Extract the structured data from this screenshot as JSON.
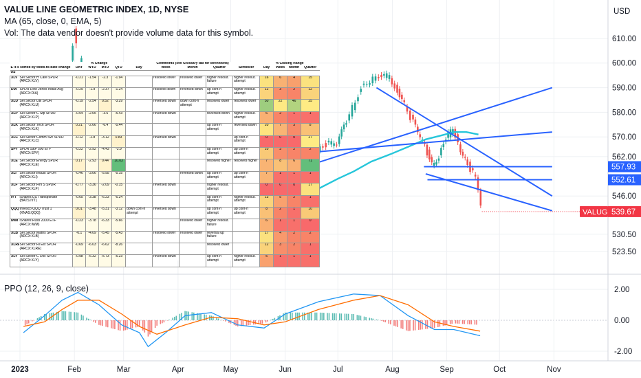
{
  "header": {
    "title": "VALUE LINE GEOMETRIC INDEX, 1D, NYSE",
    "ma_legend": "MA (65, close, 0, EMA, 5)",
    "vol_note": "Vol: The data vendor doesn't provide volume data for this symbol."
  },
  "price_axis": {
    "currency": "USD",
    "ticks": [
      "610.00",
      "600.00",
      "590.00",
      "580.00",
      "570.00",
      "562.00",
      "546.00",
      "530.50",
      "523.50"
    ],
    "labels": [
      {
        "text": "557.93",
        "value": 557.93,
        "color": "#2962ff"
      },
      {
        "text": "552.61",
        "value": 552.61,
        "color": "#2962ff"
      },
      {
        "text": "539.67",
        "value": 539.67,
        "color": "#f23645",
        "tag": "VALUG"
      }
    ]
  },
  "ppo": {
    "legend": "PPO (12, 26, 9, close)",
    "ticks": [
      "2.00",
      "0.00",
      "-2.00"
    ],
    "tick_values": [
      2,
      0,
      -2
    ]
  },
  "time_axis": {
    "labels": [
      "2023",
      "Feb",
      "Mar",
      "Apr",
      "May",
      "Jun",
      "Jul",
      "Aug",
      "Sep",
      "Oct",
      "Nov"
    ]
  },
  "chart_data": {
    "type": "candlestick",
    "title": "VALUE LINE GEOMETRIC INDEX, 1D, NYSE",
    "price_series_points": [
      [
        "2023-06-01",
        548
      ],
      [
        "2023-06-05",
        557
      ],
      [
        "2023-06-10",
        563
      ],
      [
        "2023-06-15",
        566
      ],
      [
        "2023-06-20",
        565
      ],
      [
        "2023-06-25",
        567
      ],
      [
        "2023-07-01",
        568
      ],
      [
        "2023-07-05",
        574
      ],
      [
        "2023-07-10",
        582
      ],
      [
        "2023-07-15",
        590
      ],
      [
        "2023-07-20",
        593
      ],
      [
        "2023-07-25",
        594
      ],
      [
        "2023-07-31",
        595
      ],
      [
        "2023-08-03",
        590
      ],
      [
        "2023-08-07",
        586
      ],
      [
        "2023-08-12",
        578
      ],
      [
        "2023-08-16",
        572
      ],
      [
        "2023-08-20",
        566
      ],
      [
        "2023-08-24",
        559
      ],
      [
        "2023-08-28",
        562
      ],
      [
        "2023-09-01",
        570
      ],
      [
        "2023-09-05",
        573
      ],
      [
        "2023-09-08",
        567
      ],
      [
        "2023-09-12",
        561
      ],
      [
        "2023-09-15",
        557
      ],
      [
        "2023-09-18",
        554
      ],
      [
        "2023-09-21",
        541
      ]
    ],
    "ma_series_points": [
      [
        "2023-05-23",
        543
      ],
      [
        "2023-06-01",
        544
      ],
      [
        "2023-06-10",
        546
      ],
      [
        "2023-06-20",
        549
      ],
      [
        "2023-07-01",
        553
      ],
      [
        "2023-07-10",
        556
      ],
      [
        "2023-07-20",
        560
      ],
      [
        "2023-07-31",
        563
      ],
      [
        "2023-08-10",
        566
      ],
      [
        "2023-08-20",
        569
      ],
      [
        "2023-08-31",
        571
      ],
      [
        "2023-09-05",
        572
      ],
      [
        "2023-09-12",
        572
      ],
      [
        "2023-09-19",
        571
      ]
    ],
    "last_price": 539.67,
    "horizontal_levels": [
      557.93,
      552.61
    ],
    "ppo_macd": [
      [
        "2023-01-03",
        -0.8
      ],
      [
        "2023-01-15",
        0.3
      ],
      [
        "2023-01-25",
        1.3
      ],
      [
        "2023-02-03",
        1.8
      ],
      [
        "2023-02-15",
        1.0
      ],
      [
        "2023-02-28",
        -0.3
      ],
      [
        "2023-03-10",
        -0.8
      ],
      [
        "2023-03-15",
        -1.7
      ],
      [
        "2023-03-25",
        -0.8
      ],
      [
        "2023-04-05",
        0.3
      ],
      [
        "2023-04-20",
        0.5
      ],
      [
        "2023-05-05",
        -0.3
      ],
      [
        "2023-05-20",
        -0.5
      ],
      [
        "2023-06-01",
        0.4
      ],
      [
        "2023-06-20",
        1.2
      ],
      [
        "2023-07-10",
        1.7
      ],
      [
        "2023-07-25",
        1.6
      ],
      [
        "2023-08-10",
        0.3
      ],
      [
        "2023-08-25",
        -0.6
      ],
      [
        "2023-09-05",
        -0.6
      ],
      [
        "2023-09-20",
        -1.0
      ]
    ],
    "ppo_signal": [
      [
        "2023-01-03",
        -0.4
      ],
      [
        "2023-01-15",
        -0.1
      ],
      [
        "2023-01-25",
        0.7
      ],
      [
        "2023-02-03",
        1.3
      ],
      [
        "2023-02-15",
        1.3
      ],
      [
        "2023-02-28",
        0.4
      ],
      [
        "2023-03-10",
        -0.4
      ],
      [
        "2023-03-20",
        -0.9
      ],
      [
        "2023-04-05",
        -0.3
      ],
      [
        "2023-04-20",
        0.2
      ],
      [
        "2023-05-05",
        0.1
      ],
      [
        "2023-05-20",
        -0.3
      ],
      [
        "2023-06-01",
        -0.1
      ],
      [
        "2023-06-20",
        0.7
      ],
      [
        "2023-07-10",
        1.3
      ],
      [
        "2023-07-25",
        1.6
      ],
      [
        "2023-08-10",
        1.0
      ],
      [
        "2023-08-25",
        -0.1
      ],
      [
        "2023-09-05",
        -0.4
      ],
      [
        "2023-09-20",
        -0.7
      ]
    ],
    "price_range": [
      517,
      615
    ],
    "ppo_range": [
      -2.6,
      2.7
    ]
  },
  "table": {
    "head1": {
      "pct_change": "% Change",
      "comments": "Comments (see Glossary tab for definitions)",
      "closing_range": "% Closing Range"
    },
    "head2": {
      "sort_label": "ETFs sorted by week-to-date change",
      "cols": [
        "DAY",
        "WTD",
        "MTD",
        "QTD",
        "Day",
        "Week",
        "Month",
        "Quarter",
        "Semester",
        "Day",
        "Week",
        "Month",
        "Quarter"
      ]
    },
    "group": "US",
    "rows": [
      {
        "ticker": "XLV",
        "name": "Sel Sector:H Care SPDR (ARCX:XLV)",
        "pct": [
          "-0.21",
          "-1.54",
          "-2.3",
          "-1.94"
        ],
        "comments": [
          "",
          "resolved lower",
          "resolved lower",
          "higher resolut. failure",
          "higher resolut. attempt"
        ],
        "cr": [
          "16",
          "6",
          "4",
          "15"
        ],
        "cr_colors": [
          "#fbe27f",
          "#f8b173",
          "#f8a06d",
          "#fbe27f"
        ]
      },
      {
        "ticker": "DIA",
        "name": "SPDR Dow Jones Indus Avg (ARCX:DIA)",
        "pct": [
          "-0.29",
          "-1.9",
          "-2.37",
          "-1.24"
        ],
        "comments": [
          "",
          "resolved down",
          "reversed down",
          "up cont-n attempt",
          "higher resolut. attempt"
        ],
        "cr": [
          "12",
          "3",
          "2",
          "12"
        ],
        "cr_colors": [
          "#fad37b",
          "#f88e6a",
          "#f88468",
          "#fad37b"
        ]
      },
      {
        "ticker": "XLU",
        "name": "Sel Sector:Util SPDR (ARCX:XLU)",
        "pct": [
          "-0.19",
          "-2.54",
          "0.52",
          "-3.29"
        ],
        "comments": [
          "",
          "reversed down",
          "down cont-n attempt",
          "resolved lower",
          "resolved lower"
        ],
        "cr": [
          "50",
          "22",
          "46",
          "25"
        ],
        "cr_colors": [
          "#9ecd7f",
          "#fde983",
          "#b2d37f",
          "#feeb84"
        ]
      },
      {
        "ticker": "XLP",
        "name": "Sel Sector:C Stp SPDR (ARCX:XLP)",
        "pct": [
          "-0.54",
          "-2.65",
          "-3.6",
          "-5.43"
        ],
        "comments": [
          "",
          "reversed down",
          "",
          "reversed down",
          "higher resolut. attempt"
        ],
        "cr": [
          "6",
          "2",
          "1",
          "1"
        ],
        "cr_colors": [
          "#f9b073",
          "#f88468",
          "#f8706b",
          "#f8706b"
        ]
      },
      {
        "ticker": "XLK",
        "name": "Sel Sector:Tech SPDR (ARCX:XLK)",
        "pct": [
          "0.21",
          "-2.66",
          "-6.4",
          "-5.44"
        ],
        "comments": [
          "",
          "",
          "",
          "up cont-n attempt",
          "reversed down"
        ],
        "cr": [
          "20",
          "7",
          "3",
          "8"
        ],
        "cr_colors": [
          "#fde37f",
          "#f9b474",
          "#f88b69",
          "#f9c176"
        ]
      },
      {
        "ticker": "XLC",
        "name": "Sel Sector:Comm Svc SPDR (ARCX:XLC)",
        "pct": [
          "-0.12",
          "-2.8",
          "-3.12",
          "0.83"
        ],
        "comments": [
          "",
          "reversed down",
          "",
          "",
          "up cont-n attempt"
        ],
        "cr": [
          "0",
          "0",
          "0",
          "27"
        ],
        "cr_colors": [
          "#f8696b",
          "#f8696b",
          "#f8696b",
          "#feeb84"
        ]
      },
      {
        "ticker": "SPY",
        "name": "SPDR S&P 500 ETF (ARCX:SPY)",
        "pct": [
          "-0.22",
          "-2.92",
          "-4.43",
          "-2.9"
        ],
        "comments": [
          "",
          "",
          "",
          "up cont-n attempt",
          "up cont-n attempt"
        ],
        "cr": [
          "10",
          "3",
          "2",
          "2"
        ],
        "cr_colors": [
          "#f9c977",
          "#f88e6a",
          "#f88468",
          "#f88468"
        ]
      },
      {
        "ticker": "XLE",
        "name": "Sel Sector:Energy SPDR (ARCX:XLE)",
        "pct": [
          "0.17",
          "-2.93",
          "0.44",
          "10.03"
        ],
        "comments": [
          "",
          "",
          "",
          "resolved higher",
          "resolved higher"
        ],
        "cr": [
          "7",
          "8",
          "6",
          "71"
        ],
        "cr_colors": [
          "#f9b474",
          "#f9c176",
          "#f9b073",
          "#63be7b"
        ]
      },
      {
        "ticker": "XLI",
        "name": "Sel Sector:Indust SPDR (ARCX:XLI)",
        "pct": [
          "-0.46",
          "-3.06",
          "-5.95",
          "-5.15"
        ],
        "comments": [
          "",
          "",
          "reversed down",
          "up cont-n attempt",
          "up cont-n attempt"
        ],
        "cr": [
          "7",
          "1",
          "1",
          "1"
        ],
        "cr_colors": [
          "#f9b474",
          "#f8706b",
          "#f8706b",
          "#f8706b"
        ]
      },
      {
        "ticker": "XLF",
        "name": "Sel Sector:Finl S SPDR (ARCX:XLF)",
        "pct": [
          "-0.77",
          "-3.36",
          "-2.09",
          "-0.15"
        ],
        "comments": [
          "",
          "reversed down",
          "",
          "higher resolut. attempt",
          ""
        ],
        "cr": [
          "0",
          "0",
          "0",
          "17"
        ],
        "cr_colors": [
          "#f8696b",
          "#f8696b",
          "#f8696b",
          "#fbe27f"
        ]
      },
      {
        "ticker": "IYT",
        "name": "iShares:US Transportatn (BATS:IYT)",
        "pct": [
          "-0.65",
          "-3.38",
          "-6.23",
          "-6.24"
        ],
        "comments": [
          "",
          "",
          "",
          "up cont-n attempt",
          "higher resolut. attempt"
        ],
        "cr": [
          "13",
          "5",
          "2",
          "1"
        ],
        "cr_colors": [
          "#fad37b",
          "#f9a16e",
          "#f88468",
          "#f8706b"
        ]
      },
      {
        "ticker": "QQQ",
        "name": "Invesco QQQ Trust 1 (XNAS:QQQ)",
        "pct": [
          "0.01",
          "-3.48",
          "-5.31",
          "-3.12"
        ],
        "comments": [
          "down cont-n attempt",
          "reversed down",
          "",
          "up cont-n attempt",
          "up cont-n attempt"
        ],
        "cr": [
          "8",
          "2",
          "1",
          "10"
        ],
        "cr_colors": [
          "#f9c176",
          "#f88468",
          "#f8706b",
          "#f9c977"
        ]
      },
      {
        "ticker": "IWM",
        "name": "iShares:Russ 2000 ETF (ARCX:IWM)",
        "pct": [
          "-0.23",
          "-3.78",
          "-6.33",
          "-5.66"
        ],
        "comments": [
          "",
          "",
          "resolved lower",
          "higher resolut. failure",
          ""
        ],
        "cr": [
          "6",
          "1",
          "1",
          "0"
        ],
        "cr_colors": [
          "#f9b073",
          "#f8706b",
          "#f8706b",
          "#f8696b"
        ]
      },
      {
        "ticker": "XLB",
        "name": "Sel Sector:Matrls SPDR (ARCX:XLB)",
        "pct": [
          "-0.1",
          "-4.09",
          "-5.45",
          "-5.43"
        ],
        "comments": [
          "",
          "resolved lower",
          "resolved lower",
          "reversal up failure",
          ""
        ],
        "cr": [
          "17",
          "4",
          "2",
          "2"
        ],
        "cr_colors": [
          "#fbe27f",
          "#f9996c",
          "#f88468",
          "#f88468"
        ]
      },
      {
        "ticker": "XLRE",
        "name": "Sel Sector:Rl Est SPDR (ARCX:XLRE)",
        "pct": [
          "-0.69",
          "-6.03",
          "-6.62",
          "-8.26"
        ],
        "comments": [
          "",
          "",
          "",
          "resolved lower",
          ""
        ],
        "cr": [
          "12",
          "3",
          "2",
          "1"
        ],
        "cr_colors": [
          "#fad37b",
          "#f88e6a",
          "#f88468",
          "#f8706b"
        ]
      },
      {
        "ticker": "XLY",
        "name": "Sel Sector:C Dsc SPDR (ARCX:XLY)",
        "pct": [
          "-0.98",
          "-6.32",
          "-5.73",
          "-5.23"
        ],
        "comments": [
          "",
          "reversed down",
          "",
          "up cont-n attempt",
          "higher resolut. attempt"
        ],
        "cr": [
          "5",
          "1",
          "1",
          "1"
        ],
        "cr_colors": [
          "#f9a16e",
          "#f8706b",
          "#f8706b",
          "#f8706b"
        ]
      }
    ]
  },
  "colors": {
    "up": "#26a69a",
    "down": "#ef5350",
    "trendline": "#2962ff",
    "ma": "#26c6da",
    "ppo_line": "#2196f3",
    "signal_line": "#ff6d00",
    "last_price": "#f23645"
  }
}
